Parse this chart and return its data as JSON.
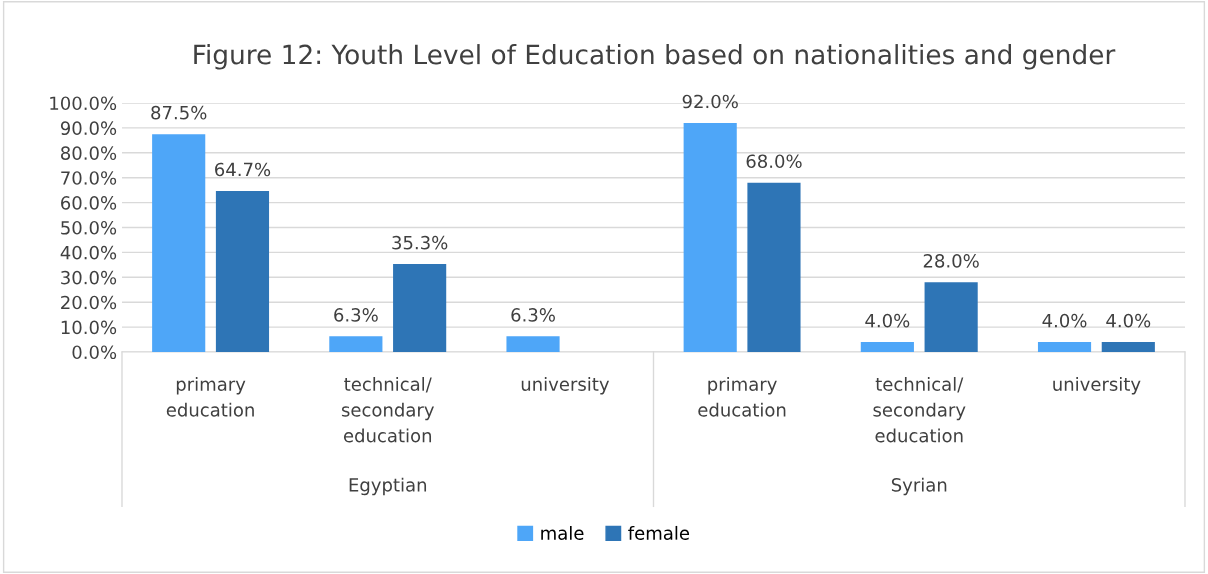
{
  "chart_data": {
    "type": "bar",
    "title": "Figure 12: Youth Level of Education based on nationalities and gender",
    "categories": [
      "primary education",
      "technical/ secondary education",
      "university",
      "primary education",
      "technical/ secondary education",
      "university"
    ],
    "series": [
      {
        "name": "male",
        "color": "#4ea6f8",
        "values": [
          87.5,
          6.3,
          6.3,
          92.0,
          4.0,
          4.0
        ],
        "value_labels": [
          "87.5%",
          "6.3%",
          "6.3%",
          "92.0%",
          "4.0%",
          "4.0%"
        ]
      },
      {
        "name": "female",
        "color": "#2e75b6",
        "values": [
          64.7,
          35.3,
          null,
          68.0,
          28.0,
          4.0
        ],
        "value_labels": [
          "64.7%",
          "35.3%",
          null,
          "68.0%",
          "28.0%",
          "4.0%"
        ]
      }
    ],
    "annotations": [
      "Egyptian",
      "Syrian"
    ],
    "ylim": [
      0,
      100
    ],
    "yticks": [
      {
        "value": 0,
        "label": "0.0%"
      },
      {
        "value": 10,
        "label": "10.0%"
      },
      {
        "value": 20,
        "label": "20.0%"
      },
      {
        "value": 30,
        "label": "30.0%"
      },
      {
        "value": 40,
        "label": "40.0%"
      },
      {
        "value": 50,
        "label": "50.0%"
      },
      {
        "value": 60,
        "label": "60.0%"
      },
      {
        "value": 70,
        "label": "70.0%"
      },
      {
        "value": 80,
        "label": "80.0%"
      },
      {
        "value": 90,
        "label": "90.0%"
      },
      {
        "value": 100,
        "label": "100.0%"
      }
    ],
    "grid": "y",
    "legend": "bottom"
  }
}
